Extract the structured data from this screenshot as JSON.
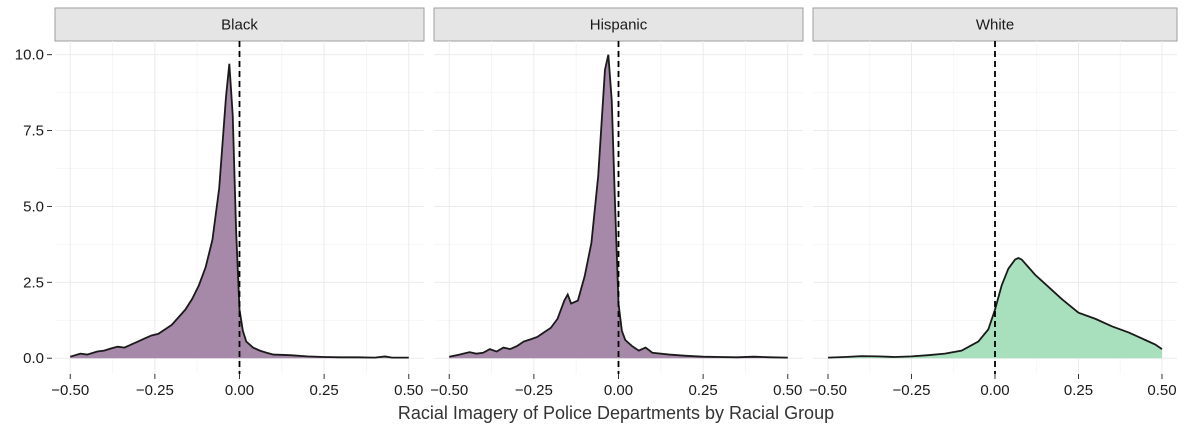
{
  "chart_data": {
    "type": "area",
    "xlabel": "Racial Imagery of Police Departments by Racial Group",
    "ylabel": "",
    "xlim": [
      -0.5,
      0.5
    ],
    "ylim": [
      0,
      10
    ],
    "x_ticks": [
      -0.5,
      -0.25,
      0.0,
      0.25,
      0.5
    ],
    "x_tick_labels": [
      "−0.50",
      "−0.25",
      "0.00",
      "0.25",
      "0.50"
    ],
    "y_ticks": [
      0,
      2.5,
      5,
      7.5,
      10
    ],
    "y_tick_labels": [
      "0.0",
      "2.5",
      "5.0",
      "7.5",
      "10.0"
    ],
    "reference_line_x": 0.0,
    "grid": true,
    "panels": [
      {
        "label": "Black",
        "fill_color": "#a688a8",
        "x": [
          -0.5,
          -0.47,
          -0.45,
          -0.42,
          -0.4,
          -0.38,
          -0.36,
          -0.34,
          -0.32,
          -0.3,
          -0.28,
          -0.26,
          -0.24,
          -0.22,
          -0.2,
          -0.18,
          -0.16,
          -0.14,
          -0.12,
          -0.1,
          -0.08,
          -0.06,
          -0.04,
          -0.03,
          -0.02,
          -0.01,
          0.0,
          0.01,
          0.02,
          0.04,
          0.06,
          0.08,
          0.1,
          0.15,
          0.2,
          0.25,
          0.3,
          0.35,
          0.4,
          0.43,
          0.45,
          0.5
        ],
        "y": [
          0.05,
          0.15,
          0.12,
          0.22,
          0.25,
          0.32,
          0.38,
          0.35,
          0.45,
          0.55,
          0.65,
          0.75,
          0.8,
          0.95,
          1.1,
          1.35,
          1.6,
          1.95,
          2.4,
          3.0,
          3.9,
          5.6,
          8.6,
          9.7,
          8.0,
          4.2,
          1.6,
          0.9,
          0.55,
          0.35,
          0.25,
          0.18,
          0.12,
          0.1,
          0.06,
          0.04,
          0.03,
          0.03,
          0.02,
          0.06,
          0.02,
          0.02
        ]
      },
      {
        "label": "Hispanic",
        "fill_color": "#a688a8",
        "x": [
          -0.5,
          -0.47,
          -0.44,
          -0.42,
          -0.4,
          -0.38,
          -0.36,
          -0.34,
          -0.32,
          -0.3,
          -0.28,
          -0.26,
          -0.24,
          -0.22,
          -0.2,
          -0.18,
          -0.16,
          -0.15,
          -0.14,
          -0.12,
          -0.11,
          -0.1,
          -0.08,
          -0.06,
          -0.04,
          -0.03,
          -0.02,
          -0.01,
          0.0,
          0.01,
          0.02,
          0.04,
          0.06,
          0.08,
          0.1,
          0.15,
          0.2,
          0.25,
          0.3,
          0.35,
          0.4,
          0.45,
          0.5
        ],
        "y": [
          0.05,
          0.12,
          0.2,
          0.15,
          0.18,
          0.3,
          0.22,
          0.35,
          0.3,
          0.4,
          0.55,
          0.62,
          0.7,
          0.85,
          1.0,
          1.3,
          1.9,
          2.1,
          1.8,
          1.9,
          2.3,
          2.7,
          3.8,
          6.0,
          9.5,
          10.0,
          8.5,
          5.0,
          1.8,
          0.9,
          0.6,
          0.4,
          0.25,
          0.35,
          0.18,
          0.12,
          0.08,
          0.05,
          0.04,
          0.03,
          0.05,
          0.03,
          0.02
        ]
      },
      {
        "label": "White",
        "fill_color": "#a8e0be",
        "x": [
          -0.5,
          -0.45,
          -0.4,
          -0.35,
          -0.3,
          -0.25,
          -0.2,
          -0.15,
          -0.1,
          -0.05,
          -0.02,
          0.0,
          0.02,
          0.04,
          0.06,
          0.07,
          0.08,
          0.1,
          0.12,
          0.15,
          0.2,
          0.25,
          0.3,
          0.35,
          0.4,
          0.45,
          0.48,
          0.5
        ],
        "y": [
          0.02,
          0.04,
          0.07,
          0.06,
          0.04,
          0.06,
          0.1,
          0.15,
          0.25,
          0.55,
          0.95,
          1.6,
          2.4,
          2.95,
          3.25,
          3.3,
          3.25,
          3.0,
          2.75,
          2.45,
          1.95,
          1.5,
          1.3,
          1.05,
          0.85,
          0.6,
          0.45,
          0.3
        ]
      }
    ]
  }
}
